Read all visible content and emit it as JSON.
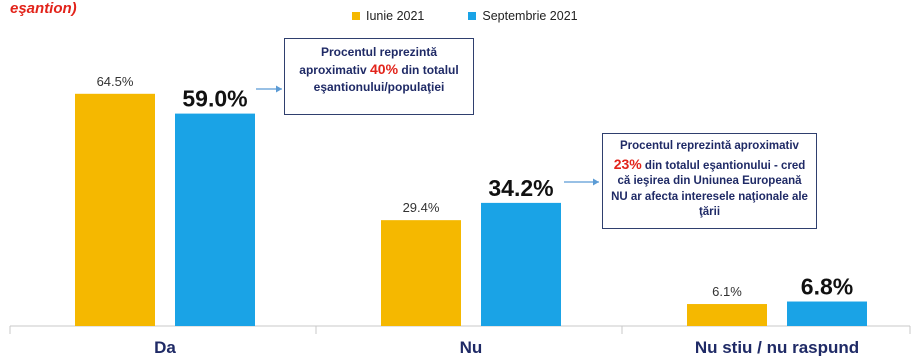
{
  "title_fragment": "eşantion)",
  "colors": {
    "series1": "#f5b800",
    "series2": "#1aa3e6",
    "accent": "#e2231a",
    "callout_text": "#1f2a66"
  },
  "chart_data": {
    "type": "bar",
    "categories": [
      "Da",
      "Nu",
      "Nu stiu / nu raspund"
    ],
    "series": [
      {
        "name": "Iunie 2021",
        "values": [
          64.5,
          29.4,
          6.1
        ],
        "labels": [
          "64.5%",
          "29.4%",
          "6.1%"
        ]
      },
      {
        "name": "Septembrie 2021",
        "values": [
          59.0,
          34.2,
          6.8
        ],
        "labels": [
          "59.0%",
          "34.2%",
          "6.8%"
        ]
      }
    ],
    "ylim": [
      0,
      70
    ],
    "grid": false,
    "legend": "top"
  },
  "callouts": [
    {
      "pre": "Procentul reprezintă aproximativ ",
      "highlight": "40%",
      "post": " din totalul eşantionului/populaţiei"
    },
    {
      "pre": "Procentul reprezintă aproximativ ",
      "highlight": "23%",
      "post": " din totalul eşantionului - cred că ieşirea din Uniunea Europeană NU ar afecta interesele naţionale ale ţării"
    }
  ]
}
